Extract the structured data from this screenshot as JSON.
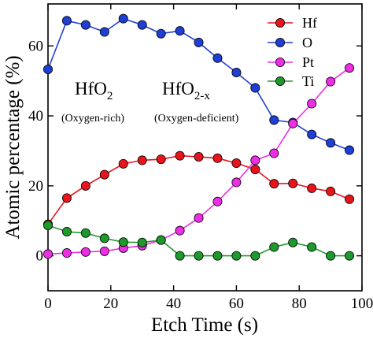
{
  "chart_data": {
    "type": "line",
    "title": "",
    "xlabel": "Etch Time (s)",
    "ylabel": "Atomic percentage (%)",
    "xlim": [
      0,
      100
    ],
    "ylim": [
      -10,
      72
    ],
    "xticks": [
      0,
      20,
      40,
      60,
      80,
      100
    ],
    "yticks": [
      0,
      20,
      40,
      60
    ],
    "grid": false,
    "legend_position": "top-right",
    "x": [
      0,
      6,
      12,
      18,
      24,
      30,
      36,
      42,
      48,
      54,
      60,
      66,
      72,
      78,
      84,
      90,
      96
    ],
    "series": [
      {
        "name": "Hf",
        "color": "#e8141c",
        "values": [
          9,
          16.5,
          20,
          23.2,
          26.3,
          27.3,
          27.6,
          28.6,
          28.3,
          27.9,
          26.5,
          24.7,
          20.6,
          20.7,
          19.3,
          18.4,
          16.2
        ]
      },
      {
        "name": "O",
        "color": "#1f3fd4",
        "values": [
          53.3,
          67.2,
          66,
          64,
          67.8,
          66,
          63.5,
          64.3,
          61,
          56.5,
          52.4,
          48,
          38.8,
          38.1,
          34.7,
          32.3,
          30.2
        ]
      },
      {
        "name": "Pt",
        "color": "#ee2ee6",
        "values": [
          0.5,
          0.8,
          1.1,
          1.3,
          2.2,
          2.9,
          4.5,
          7.2,
          10.8,
          15.5,
          21,
          27.3,
          29.3,
          37.8,
          43.5,
          49.8,
          53.7
        ]
      },
      {
        "name": "Ti",
        "color": "#1d9a2c",
        "values": [
          8.7,
          6.9,
          6.5,
          5,
          3.9,
          3.8,
          4.5,
          0,
          0,
          0,
          0,
          0,
          2.5,
          3.8,
          2.5,
          0,
          0
        ]
      }
    ],
    "annotations": [
      {
        "main": "HfO",
        "sub": "2",
        "desc": "(Oxygen-rich)"
      },
      {
        "main": "HfO",
        "sub": "2-x",
        "desc": "(Oxygen-deficient)"
      }
    ]
  }
}
